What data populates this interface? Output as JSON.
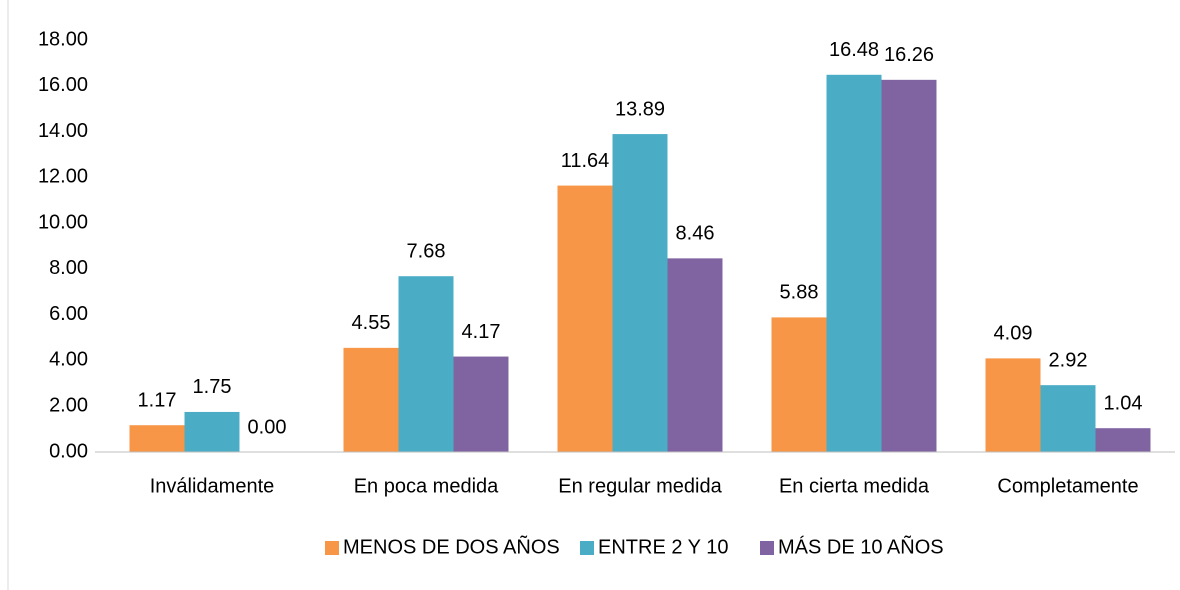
{
  "chart_data": {
    "type": "bar",
    "categories": [
      "Inválidamente",
      "En poca medida",
      "En regular medida",
      "En cierta medida",
      "Completamente"
    ],
    "series": [
      {
        "name": "MENOS DE DOS AÑOS",
        "color": "#f79646",
        "values": [
          1.17,
          4.55,
          11.64,
          5.88,
          4.09
        ],
        "value_labels": [
          "1.17",
          "4.55",
          "11.64",
          "5.88",
          "4.09"
        ]
      },
      {
        "name": "ENTRE 2 Y 10",
        "color": "#4bacc6",
        "values": [
          1.75,
          7.68,
          13.89,
          16.48,
          2.92
        ],
        "value_labels": [
          "1.75",
          "7.68",
          "13.89",
          "16.48",
          "2.92"
        ]
      },
      {
        "name": "MÁS DE 10 AÑOS",
        "color": "#8064a2",
        "values": [
          0,
          4.17,
          8.46,
          16.26,
          1.04
        ],
        "value_labels": [
          "0.00",
          "4.17",
          "8.46",
          "16.26",
          "1.04"
        ]
      }
    ],
    "ylim": [
      0,
      18
    ],
    "yticks": [
      {
        "value": 0,
        "label": "0.00"
      },
      {
        "value": 2,
        "label": "2.00"
      },
      {
        "value": 4,
        "label": "4.00"
      },
      {
        "value": 6,
        "label": "6.00"
      },
      {
        "value": 8,
        "label": "8.00"
      },
      {
        "value": 10,
        "label": "10.00"
      },
      {
        "value": 12,
        "label": "12.00"
      },
      {
        "value": 14,
        "label": "14.00"
      },
      {
        "value": 16,
        "label": "16.00"
      },
      {
        "value": 18,
        "label": "18.00"
      }
    ],
    "grid": false,
    "legend": "bottom"
  }
}
